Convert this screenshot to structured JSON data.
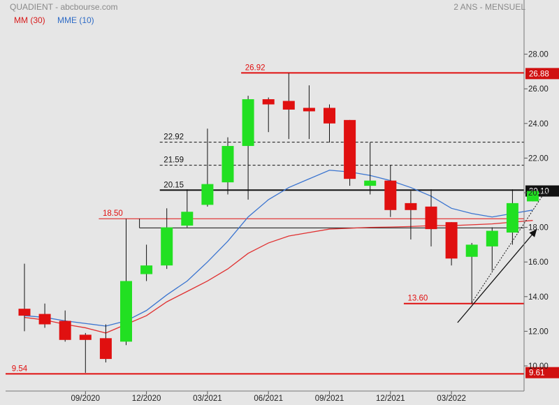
{
  "header": {
    "title": "QUADIENT - abcbourse.com",
    "period": "2 ANS - MENSUEL",
    "legend_ma": "MM (30)",
    "legend_ema": "MME (10)"
  },
  "colors": {
    "up": "#22e022",
    "down": "#e01010",
    "ma30": "#e03030",
    "ema10": "#3a74d0",
    "level": "#e01010",
    "background": "#e6e6e6"
  },
  "chart_data": {
    "type": "candlestick",
    "ylim": [
      9.5,
      28.2
    ],
    "y_ticks": [
      "10.00",
      "12.00",
      "14.00",
      "16.00",
      "18.00",
      "20.00",
      "22.00",
      "24.00",
      "26.00",
      "28.00"
    ],
    "x_tick_labels": [
      {
        "label": "09/2020",
        "index": 3
      },
      {
        "label": "12/2020",
        "index": 6
      },
      {
        "label": "03/2021",
        "index": 9
      },
      {
        "label": "06/2021",
        "index": 12
      },
      {
        "label": "09/2021",
        "index": 15
      },
      {
        "label": "12/2021",
        "index": 18
      },
      {
        "label": "03/2022",
        "index": 21
      }
    ],
    "candles": [
      {
        "o": 13.3,
        "h": 15.9,
        "l": 12.0,
        "c": 12.9
      },
      {
        "o": 13.0,
        "h": 13.6,
        "l": 12.2,
        "c": 12.4
      },
      {
        "o": 12.6,
        "h": 13.2,
        "l": 11.4,
        "c": 11.5
      },
      {
        "o": 11.8,
        "h": 11.9,
        "l": 9.6,
        "c": 11.5
      },
      {
        "o": 11.6,
        "h": 12.4,
        "l": 10.2,
        "c": 10.4
      },
      {
        "o": 11.4,
        "h": 18.5,
        "l": 11.2,
        "c": 14.9
      },
      {
        "o": 15.3,
        "h": 17.0,
        "l": 14.9,
        "c": 15.8
      },
      {
        "o": 15.8,
        "h": 19.1,
        "l": 15.6,
        "c": 18.0
      },
      {
        "o": 18.1,
        "h": 20.2,
        "l": 18.0,
        "c": 18.9
      },
      {
        "o": 19.3,
        "h": 23.7,
        "l": 19.2,
        "c": 20.5
      },
      {
        "o": 20.6,
        "h": 23.2,
        "l": 19.9,
        "c": 22.7
      },
      {
        "o": 22.7,
        "h": 25.6,
        "l": 19.6,
        "c": 25.4
      },
      {
        "o": 25.4,
        "h": 25.5,
        "l": 23.5,
        "c": 25.1
      },
      {
        "o": 25.3,
        "h": 26.9,
        "l": 23.1,
        "c": 24.8
      },
      {
        "o": 24.9,
        "h": 26.2,
        "l": 23.1,
        "c": 24.7
      },
      {
        "o": 24.9,
        "h": 25.1,
        "l": 22.9,
        "c": 24.0
      },
      {
        "o": 24.2,
        "h": 24.2,
        "l": 20.4,
        "c": 20.8
      },
      {
        "o": 20.4,
        "h": 22.9,
        "l": 19.9,
        "c": 20.7
      },
      {
        "o": 20.7,
        "h": 21.6,
        "l": 18.6,
        "c": 19.0
      },
      {
        "o": 19.4,
        "h": 20.1,
        "l": 17.3,
        "c": 19.0
      },
      {
        "o": 19.2,
        "h": 20.2,
        "l": 16.9,
        "c": 17.9
      },
      {
        "o": 18.3,
        "h": 18.3,
        "l": 15.8,
        "c": 16.2
      },
      {
        "o": 16.3,
        "h": 17.1,
        "l": 13.6,
        "c": 17.0
      },
      {
        "o": 16.9,
        "h": 18.0,
        "l": 15.5,
        "c": 17.8
      },
      {
        "o": 17.7,
        "h": 20.2,
        "l": 17.0,
        "c": 19.4
      },
      {
        "o": 19.5,
        "h": 20.2,
        "l": 19.5,
        "c": 20.1
      }
    ],
    "ma30": [
      12.8,
      12.65,
      12.4,
      12.2,
      11.9,
      12.4,
      12.9,
      13.7,
      14.3,
      14.9,
      15.6,
      16.5,
      17.1,
      17.5,
      17.7,
      17.9,
      17.95,
      18.0,
      18.02,
      18.05,
      18.1,
      18.1,
      18.15,
      18.2,
      18.3,
      18.4
    ],
    "ema10": [
      12.9,
      12.8,
      12.6,
      12.45,
      12.3,
      12.6,
      13.2,
      14.1,
      14.9,
      16.0,
      17.2,
      18.6,
      19.6,
      20.3,
      20.8,
      21.3,
      21.2,
      21.0,
      20.7,
      20.3,
      19.8,
      19.1,
      18.8,
      18.6,
      18.8,
      19.0
    ],
    "levels": [
      {
        "value": 26.92,
        "label": "26.92",
        "style": "red",
        "from_index": 11,
        "axis_label": "26.88",
        "axis_value": 26.88
      },
      {
        "value": 22.92,
        "label": "22.92",
        "style": "dashed",
        "from_index": 7
      },
      {
        "value": 21.59,
        "label": "21.59",
        "style": "dashed",
        "from_index": 7
      },
      {
        "value": 20.15,
        "label": "20.15",
        "style": "black",
        "from_index": 7,
        "axis_label": "20.10",
        "axis_value": 20.1
      },
      {
        "value": 18.5,
        "label": "18.50",
        "style": "thinred",
        "from_index": 4
      },
      {
        "value": 17.97,
        "label": "",
        "style": "thinblack",
        "from_index": 6
      },
      {
        "value": 13.6,
        "label": "13.60",
        "style": "red",
        "from_index": 19
      },
      {
        "value": 9.54,
        "label": "9.54",
        "style": "red",
        "from_index": 0,
        "axis_label": "9.61",
        "axis_value": 9.61
      }
    ],
    "bracket": {
      "index": 6,
      "top": 18.5,
      "bottom": 17.97
    },
    "trendline_dotted": {
      "from": {
        "index": 22,
        "value": 13.65
      },
      "to": {
        "index": 25.6,
        "value": 20.05
      }
    },
    "arrow": {
      "from": {
        "index": 21.3,
        "value": 12.5
      },
      "to": {
        "index": 25.2,
        "value": 17.9
      }
    }
  }
}
